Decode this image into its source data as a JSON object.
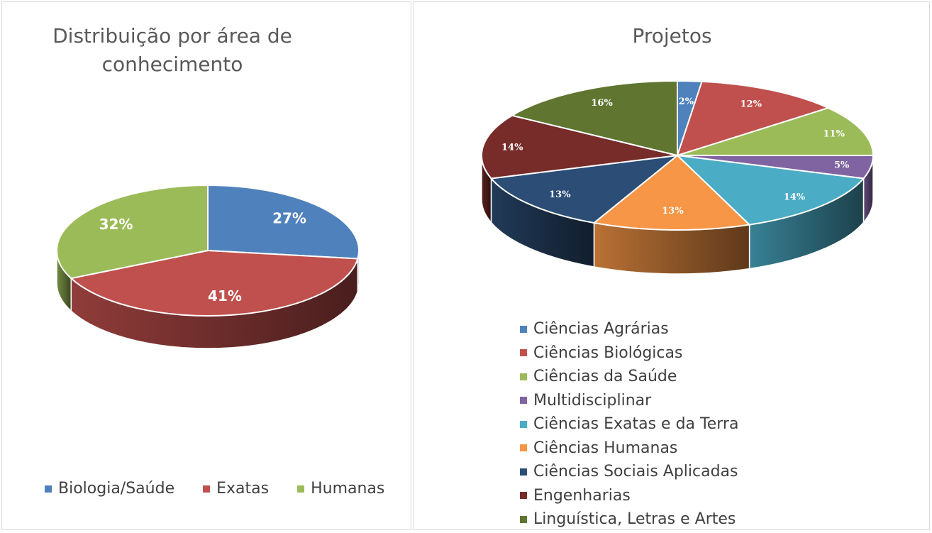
{
  "chart_data": [
    {
      "type": "pie",
      "title": "Distribuição por área de conhecimento",
      "categories": [
        "Biologia/Saúde",
        "Exatas",
        "Humanas"
      ],
      "values": [
        27,
        41,
        32
      ],
      "labels": [
        "27%",
        "41%",
        "32%"
      ],
      "colors": [
        "#4f81bd",
        "#c0504d",
        "#9bbb59"
      ],
      "legend_position": "bottom"
    },
    {
      "type": "pie",
      "title": "Projetos",
      "categories": [
        "Ciências Agrárias",
        "Ciências Biológicas",
        "Ciências da Saúde",
        "Multidisciplinar",
        "Ciências Exatas e da Terra",
        "Ciências Humanas",
        "Ciências Sociais Aplicadas",
        "Engenharias",
        "Linguística, Letras e Artes"
      ],
      "values": [
        2,
        12,
        11,
        5,
        14,
        13,
        13,
        14,
        16
      ],
      "labels": [
        "2%",
        "12%",
        "11%",
        "5%",
        "14%",
        "13%",
        "13%",
        "14%",
        "16%"
      ],
      "colors": [
        "#4f81bd",
        "#c0504d",
        "#9bbb59",
        "#8064a2",
        "#4bacc6",
        "#f79646",
        "#2c4d75",
        "#772c2a",
        "#5f7530"
      ],
      "legend_position": "bottom"
    }
  ]
}
